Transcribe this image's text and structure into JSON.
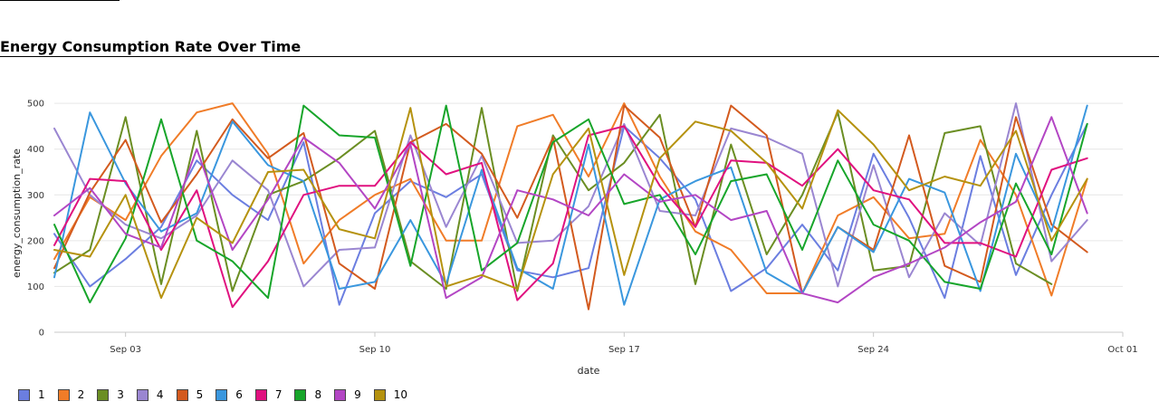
{
  "chart_data": {
    "type": "line",
    "title": "Energy Consumption Rate Over Time",
    "xlabel": "date",
    "ylabel": "energy_consumption_rate",
    "x": [
      "2023-09-01",
      "2023-09-02",
      "2023-09-03",
      "2023-09-04",
      "2023-09-05",
      "2023-09-06",
      "2023-09-07",
      "2023-09-08",
      "2023-09-09",
      "2023-09-10",
      "2023-09-11",
      "2023-09-12",
      "2023-09-13",
      "2023-09-14",
      "2023-09-15",
      "2023-09-16",
      "2023-09-17",
      "2023-09-18",
      "2023-09-19",
      "2023-09-20",
      "2023-09-21",
      "2023-09-22",
      "2023-09-23",
      "2023-09-24",
      "2023-09-25",
      "2023-09-26",
      "2023-09-27",
      "2023-09-28",
      "2023-09-29",
      "2023-09-30"
    ],
    "x_ticks": [
      "Sep 03",
      "Sep 10",
      "Sep 17",
      "Sep 24",
      "Oct 01"
    ],
    "x_tick_dates": [
      "2023-09-03",
      "2023-09-10",
      "2023-09-17",
      "2023-09-24",
      "2023-10-01"
    ],
    "ylim": [
      0,
      520
    ],
    "y_ticks": [
      0,
      100,
      200,
      300,
      400,
      500
    ],
    "grid": "horizontal",
    "legend_position": "bottom-left",
    "series": [
      {
        "name": "1",
        "color": "#6b7ee0",
        "values": [
          215,
          100,
          160,
          230,
          375,
          300,
          245,
          415,
          60,
          260,
          330,
          295,
          345,
          135,
          120,
          140,
          450,
          380,
          290,
          90,
          140,
          235,
          135,
          390,
          250,
          75,
          385,
          125,
          300,
          455
        ]
      },
      {
        "name": "2",
        "color": "#f07c28",
        "values": [
          160,
          295,
          245,
          385,
          480,
          500,
          390,
          150,
          245,
          300,
          335,
          200,
          200,
          450,
          475,
          340,
          500,
          340,
          220,
          180,
          85,
          85,
          255,
          295,
          205,
          215,
          420,
          300,
          80,
          335
        ]
      },
      {
        "name": "3",
        "color": "#6b8e23",
        "values": [
          130,
          180,
          470,
          105,
          440,
          90,
          300,
          330,
          380,
          440,
          155,
          95,
          490,
          90,
          430,
          310,
          370,
          475,
          105,
          410,
          170,
          300,
          480,
          135,
          145,
          435,
          450,
          150,
          105,
          null
        ]
      },
      {
        "name": "4",
        "color": "#9a86d1",
        "values": [
          445,
          300,
          235,
          205,
          255,
          375,
          310,
          100,
          180,
          185,
          430,
          230,
          385,
          195,
          200,
          275,
          455,
          265,
          255,
          445,
          425,
          390,
          100,
          365,
          120,
          260,
          190,
          500,
          155,
          245
        ]
      },
      {
        "name": "5",
        "color": "#d35a1e",
        "values": [
          140,
          305,
          420,
          240,
          345,
          465,
          380,
          435,
          150,
          95,
          415,
          455,
          390,
          250,
          425,
          50,
          495,
          425,
          230,
          495,
          430,
          85,
          230,
          180,
          430,
          145,
          110,
          470,
          235,
          175
        ]
      },
      {
        "name": "6",
        "color": "#3a97de",
        "values": [
          120,
          480,
          325,
          220,
          260,
          460,
          365,
          330,
          95,
          110,
          245,
          105,
          355,
          140,
          95,
          410,
          60,
          290,
          330,
          360,
          130,
          85,
          230,
          175,
          335,
          305,
          90,
          390,
          220,
          495
        ]
      },
      {
        "name": "7",
        "color": "#e0117f",
        "values": [
          190,
          335,
          330,
          180,
          310,
          55,
          155,
          300,
          320,
          320,
          415,
          345,
          370,
          70,
          150,
          430,
          450,
          320,
          230,
          375,
          370,
          320,
          400,
          310,
          290,
          195,
          195,
          165,
          355,
          380
        ]
      },
      {
        "name": "8",
        "color": "#17a52a",
        "values": [
          235,
          65,
          205,
          465,
          200,
          155,
          75,
          495,
          430,
          425,
          145,
          495,
          135,
          195,
          415,
          465,
          280,
          300,
          170,
          330,
          345,
          180,
          375,
          235,
          200,
          110,
          95,
          325,
          170,
          455
        ]
      },
      {
        "name": "9",
        "color": "#b346c4",
        "values": [
          255,
          315,
          215,
          185,
          400,
          180,
          290,
          425,
          370,
          270,
          410,
          75,
          120,
          310,
          290,
          255,
          345,
          285,
          300,
          245,
          265,
          85,
          65,
          120,
          150,
          185,
          240,
          285,
          470,
          260
        ]
      },
      {
        "name": "10",
        "color": "#b5920f",
        "values": [
          180,
          165,
          300,
          75,
          250,
          195,
          350,
          355,
          225,
          205,
          490,
          100,
          125,
          95,
          345,
          445,
          125,
          380,
          460,
          440,
          370,
          270,
          485,
          410,
          310,
          340,
          320,
          440,
          200,
          335
        ]
      }
    ]
  }
}
